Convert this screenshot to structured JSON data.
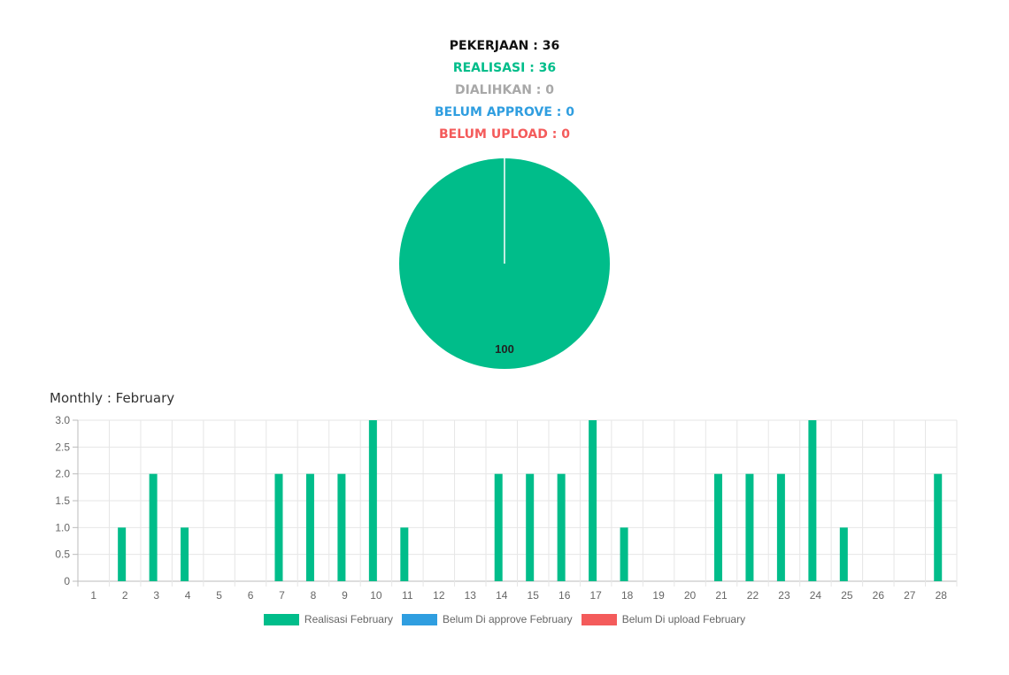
{
  "summary": {
    "pekerjaan": "PEKERJAAN : 36",
    "realisasi": "REALISASI : 36",
    "dialihkan": "DIALIHKAN : 0",
    "belum_approve": "BELUM APPROVE : 0",
    "belum_upload": "BELUM UPLOAD : 0"
  },
  "colors": {
    "black": "#111111",
    "green": "#00bd8a",
    "gray": "#a8a8a8",
    "blue": "#2f9ee0",
    "red": "#f45b5b"
  },
  "monthly_title": "Monthly : February",
  "chart_data": [
    {
      "type": "pie",
      "slices": [
        {
          "label": "Realisasi",
          "value": 100,
          "color": "#00bd8a"
        }
      ],
      "data_labels": [
        "100"
      ]
    },
    {
      "type": "bar",
      "categories": [
        "1",
        "2",
        "3",
        "4",
        "5",
        "6",
        "7",
        "8",
        "9",
        "10",
        "11",
        "12",
        "13",
        "14",
        "15",
        "16",
        "17",
        "18",
        "19",
        "20",
        "21",
        "22",
        "23",
        "24",
        "25",
        "26",
        "27",
        "28"
      ],
      "series": [
        {
          "name": "Realisasi February",
          "color": "#00bd8a",
          "values": [
            0,
            1,
            2,
            1,
            0,
            0,
            2,
            2,
            2,
            3,
            1,
            0,
            0,
            2,
            2,
            2,
            3,
            1,
            0,
            0,
            2,
            2,
            2,
            3,
            1,
            0,
            0,
            2
          ]
        },
        {
          "name": "Belum Di approve February",
          "color": "#2f9ee0",
          "values": [
            0,
            0,
            0,
            0,
            0,
            0,
            0,
            0,
            0,
            0,
            0,
            0,
            0,
            0,
            0,
            0,
            0,
            0,
            0,
            0,
            0,
            0,
            0,
            0,
            0,
            0,
            0,
            0
          ]
        },
        {
          "name": "Belum Di upload February",
          "color": "#f45b5b",
          "values": [
            0,
            0,
            0,
            0,
            0,
            0,
            0,
            0,
            0,
            0,
            0,
            0,
            0,
            0,
            0,
            0,
            0,
            0,
            0,
            0,
            0,
            0,
            0,
            0,
            0,
            0,
            0,
            0
          ]
        }
      ],
      "y_ticks": [
        "0",
        "0.5",
        "1.0",
        "1.5",
        "2.0",
        "2.5",
        "3.0"
      ],
      "ylim": [
        0,
        3
      ],
      "grid": true,
      "legend": "bottom"
    }
  ]
}
